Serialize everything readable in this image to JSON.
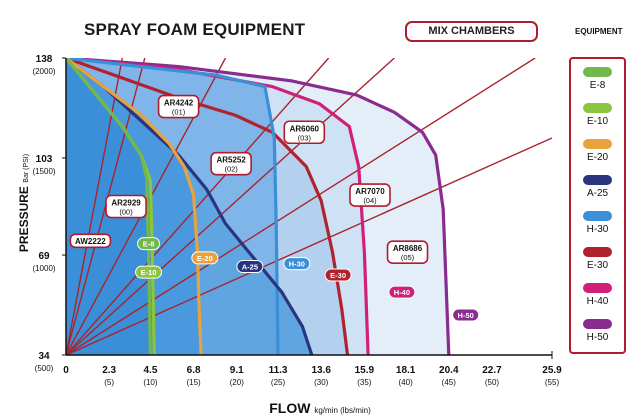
{
  "title": "SPRAY FOAM EQUIPMENT",
  "mix_button": "MIX CHAMBERS",
  "legend_title": "EQUIPMENT",
  "legend": [
    {
      "name": "E-8",
      "color": "#72b84a"
    },
    {
      "name": "E-10",
      "color": "#8cc63f"
    },
    {
      "name": "E-20",
      "color": "#e8a33c"
    },
    {
      "name": "A-25",
      "color": "#2b3480"
    },
    {
      "name": "H-30",
      "color": "#3a8fd6"
    },
    {
      "name": "E-30",
      "color": "#b0222d"
    },
    {
      "name": "H-40",
      "color": "#d0207a"
    },
    {
      "name": "H-50",
      "color": "#8a2c8f"
    }
  ],
  "chart_data": {
    "type": "area",
    "title": "SPRAY FOAM EQUIPMENT",
    "xlabel": "FLOW",
    "xlabel_unit": "kg/min (lbs/min)",
    "ylabel": "PRESSURE",
    "ylabel_unit": "Bar (PSI)",
    "xlim": [
      0,
      25.9
    ],
    "ylim": [
      34,
      138
    ],
    "x_ticks": [
      {
        "value": 0,
        "label": "0",
        "sub": ""
      },
      {
        "value": 2.3,
        "label": "2.3",
        "sub": "(5)"
      },
      {
        "value": 4.5,
        "label": "4.5",
        "sub": "(10)"
      },
      {
        "value": 6.8,
        "label": "6.8",
        "sub": "(15)"
      },
      {
        "value": 9.1,
        "label": "9.1",
        "sub": "(20)"
      },
      {
        "value": 11.3,
        "label": "11.3",
        "sub": "(25)"
      },
      {
        "value": 13.6,
        "label": "13.6",
        "sub": "(30)"
      },
      {
        "value": 15.9,
        "label": "15.9",
        "sub": "(35)"
      },
      {
        "value": 18.1,
        "label": "18.1",
        "sub": "(40)"
      },
      {
        "value": 20.4,
        "label": "20.4",
        "sub": "(45)"
      },
      {
        "value": 22.7,
        "label": "22.7",
        "sub": "(50)"
      },
      {
        "value": 25.9,
        "label": "25.9",
        "sub": "(55)"
      }
    ],
    "y_ticks": [
      {
        "value": 138,
        "label": "138",
        "sub": "(2000)"
      },
      {
        "value": 103,
        "label": "103",
        "sub": "(1500)"
      },
      {
        "value": 69,
        "label": "69",
        "sub": "(1000)"
      },
      {
        "value": 34,
        "label": "34",
        "sub": "(500)"
      }
    ],
    "series": [
      {
        "name": "H-50",
        "color": "#8a2c8f",
        "fill": "#e4eef9",
        "label": "H-50",
        "label_at": [
          21.3,
          48
        ],
        "points": [
          [
            0,
            138
          ],
          [
            6,
            135
          ],
          [
            12,
            130
          ],
          [
            15.5,
            125
          ],
          [
            17.5,
            119
          ],
          [
            19,
            112
          ],
          [
            19.7,
            104
          ],
          [
            20.1,
            85
          ],
          [
            20.4,
            34
          ]
        ]
      },
      {
        "name": "H-40",
        "color": "#d0207a",
        "fill": "#cfe1f4",
        "label": "H-40",
        "label_at": [
          17.9,
          56
        ],
        "points": [
          [
            0,
            138
          ],
          [
            6,
            134
          ],
          [
            11,
            128
          ],
          [
            13.5,
            122
          ],
          [
            15.1,
            114
          ],
          [
            15.6,
            100
          ],
          [
            15.9,
            70
          ],
          [
            16.1,
            34
          ]
        ]
      },
      {
        "name": "E-30",
        "color": "#b0222d",
        "fill": "#b3d1ef",
        "label": "E-30",
        "label_at": [
          14.5,
          62
        ],
        "points": [
          [
            0,
            138
          ],
          [
            3,
            131
          ],
          [
            6,
            124
          ],
          [
            9,
            118
          ],
          [
            11,
            112
          ],
          [
            12.8,
            100
          ],
          [
            13.6,
            88
          ],
          [
            14.2,
            70
          ],
          [
            14.7,
            50
          ],
          [
            15,
            34
          ]
        ]
      },
      {
        "name": "H-30",
        "color": "#3a8fd6",
        "fill": "#7fb5e8",
        "label": "H-30",
        "label_at": [
          12.3,
          66
        ],
        "points": [
          [
            0,
            138
          ],
          [
            4,
            135
          ],
          [
            8,
            132
          ],
          [
            10.6,
            128
          ],
          [
            11.1,
            110
          ],
          [
            11.2,
            80
          ],
          [
            11.3,
            34
          ]
        ]
      },
      {
        "name": "A-25",
        "color": "#2b3480",
        "fill": "#5ea5e2",
        "label": "A-25",
        "label_at": [
          9.8,
          65
        ],
        "points": [
          [
            0,
            138
          ],
          [
            2,
            128
          ],
          [
            4,
            116
          ],
          [
            6,
            104
          ],
          [
            7.5,
            92
          ],
          [
            8.5,
            80
          ],
          [
            10,
            68
          ],
          [
            11.5,
            56
          ],
          [
            12.6,
            44
          ],
          [
            13.1,
            34
          ]
        ]
      },
      {
        "name": "E-20",
        "color": "#e8a33c",
        "fill": "#4a98dd",
        "label": "E-20",
        "label_at": [
          7.4,
          68
        ],
        "points": [
          [
            0,
            138
          ],
          [
            2,
            128
          ],
          [
            4,
            118
          ],
          [
            5.5,
            108
          ],
          [
            6.3,
            100
          ],
          [
            6.8,
            90
          ],
          [
            7.0,
            70
          ],
          [
            7.1,
            50
          ],
          [
            7.2,
            34
          ]
        ]
      },
      {
        "name": "E-10",
        "color": "#8cc63f",
        "fill": "#3a8fd8",
        "label": "E-10",
        "label_at": [
          4.4,
          63
        ],
        "points": [
          [
            0,
            138
          ],
          [
            1.5,
            126
          ],
          [
            3,
            114
          ],
          [
            4,
            104
          ],
          [
            4.5,
            95
          ],
          [
            4.6,
            70
          ],
          [
            4.7,
            34
          ]
        ]
      },
      {
        "name": "E-8",
        "color": "#72b84a",
        "fill": "#3a8fd8",
        "label": "E-8",
        "label_at": [
          4.4,
          73
        ],
        "points": [
          [
            0,
            138
          ],
          [
            1.5,
            126
          ],
          [
            3,
            114
          ],
          [
            4,
            104
          ],
          [
            4.3,
            96
          ],
          [
            4.4,
            70
          ],
          [
            4.5,
            34
          ]
        ]
      }
    ],
    "mix_chambers": [
      {
        "name": "AW2222",
        "line": [
          [
            0,
            34
          ],
          [
            3,
            138
          ]
        ],
        "label": "AW2222",
        "sub": "",
        "label_at": [
          1.3,
          74
        ]
      },
      {
        "name": "AR2929",
        "line": [
          [
            0,
            34
          ],
          [
            4.2,
            138
          ]
        ],
        "label": "AR2929",
        "sub": "(00)",
        "label_at": [
          3.2,
          86
        ]
      },
      {
        "name": "AR4242",
        "line": [
          [
            0,
            34
          ],
          [
            8.5,
            138
          ]
        ],
        "label": "AR4242",
        "sub": "(01)",
        "label_at": [
          6.0,
          121
        ]
      },
      {
        "name": "AR5252",
        "line": [
          [
            0,
            34
          ],
          [
            14,
            138
          ]
        ],
        "label": "AR5252",
        "sub": "(02)",
        "label_at": [
          8.8,
          101
        ]
      },
      {
        "name": "AR6060",
        "line": [
          [
            0,
            34
          ],
          [
            17.5,
            138
          ]
        ],
        "label": "AR6060",
        "sub": "(03)",
        "label_at": [
          12.7,
          112
        ]
      },
      {
        "name": "AR7070",
        "line": [
          [
            0,
            34
          ],
          [
            25,
            138
          ]
        ],
        "label": "AR7070",
        "sub": "(04)",
        "label_at": [
          16.2,
          90
        ]
      },
      {
        "name": "AR8686",
        "line": [
          [
            0,
            34
          ],
          [
            25.9,
            110
          ]
        ],
        "label": "AR8686",
        "sub": "(05)",
        "label_at": [
          18.2,
          70
        ]
      }
    ],
    "grid": false
  }
}
